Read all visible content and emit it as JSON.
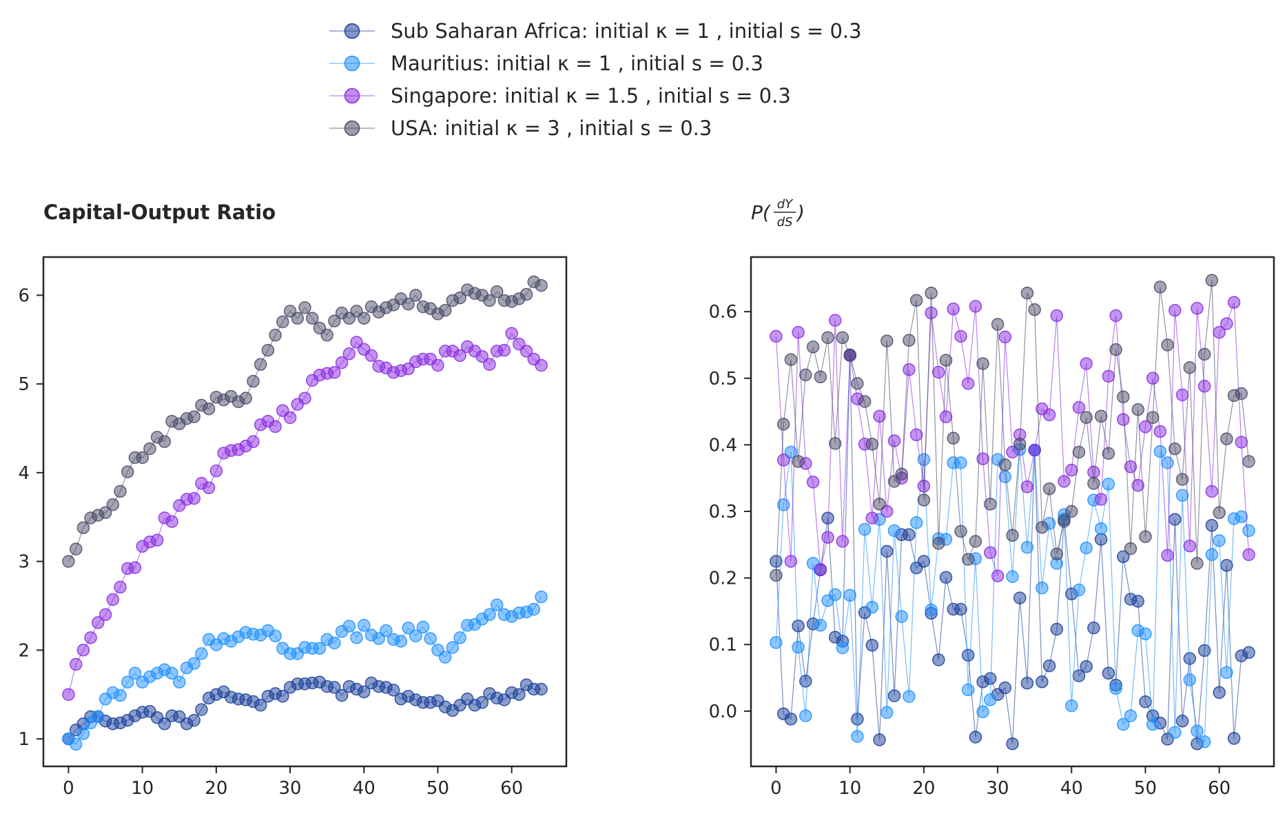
{
  "legend": {
    "entries": [
      {
        "label": "Sub Saharan Africa: initial κ = 1 , initial s = 0.3",
        "color": "#1a3f99"
      },
      {
        "label": "Mauritius: initial κ = 1 , initial s = 0.3",
        "color": "#1e90ff"
      },
      {
        "label": "Singapore: initial κ = 1.5 , initial s = 0.3",
        "color": "#8a2be2"
      },
      {
        "label": "USA: initial κ = 3 , initial s = 0.3",
        "color": "#4a4a68"
      }
    ]
  },
  "chart_data": [
    {
      "type": "line",
      "title": "Capital-Output Ratio",
      "xlabel": "",
      "ylabel": "",
      "x_ticks": [
        0,
        10,
        20,
        30,
        40,
        50,
        60
      ],
      "y_ticks": [
        1,
        2,
        3,
        4,
        5,
        6
      ],
      "xlim": [
        -3.4,
        67.4
      ],
      "ylim": [
        0.69,
        6.43
      ],
      "grid": false,
      "series": [
        {
          "name": "Sub Saharan Africa",
          "color": "#1a3f99",
          "values": [
            1.0,
            1.1,
            1.17,
            1.25,
            1.25,
            1.2,
            1.17,
            1.18,
            1.21,
            1.26,
            1.3,
            1.31,
            1.24,
            1.17,
            1.26,
            1.25,
            1.17,
            1.21,
            1.33,
            1.46,
            1.5,
            1.53,
            1.47,
            1.45,
            1.44,
            1.42,
            1.38,
            1.48,
            1.51,
            1.48,
            1.58,
            1.62,
            1.62,
            1.63,
            1.64,
            1.59,
            1.58,
            1.49,
            1.59,
            1.56,
            1.53,
            1.63,
            1.59,
            1.58,
            1.55,
            1.45,
            1.48,
            1.44,
            1.41,
            1.41,
            1.43,
            1.36,
            1.32,
            1.38,
            1.45,
            1.38,
            1.41,
            1.51,
            1.46,
            1.44,
            1.52,
            1.5,
            1.61,
            1.56,
            1.56
          ]
        },
        {
          "name": "Mauritius",
          "color": "#1e90ff",
          "values": [
            1.0,
            0.94,
            1.06,
            1.18,
            1.25,
            1.45,
            1.52,
            1.49,
            1.64,
            1.74,
            1.64,
            1.7,
            1.74,
            1.78,
            1.74,
            1.64,
            1.8,
            1.85,
            1.96,
            2.12,
            2.06,
            2.13,
            2.1,
            2.15,
            2.2,
            2.18,
            2.17,
            2.22,
            2.16,
            2.02,
            1.96,
            1.96,
            2.03,
            2.02,
            2.02,
            2.12,
            2.08,
            2.21,
            2.27,
            2.14,
            2.28,
            2.17,
            2.13,
            2.22,
            2.12,
            2.1,
            2.25,
            2.16,
            2.26,
            2.13,
            2.0,
            1.92,
            2.03,
            2.14,
            2.28,
            2.29,
            2.35,
            2.4,
            2.51,
            2.4,
            2.38,
            2.42,
            2.43,
            2.46,
            2.6
          ]
        },
        {
          "name": "Singapore",
          "color": "#8a2be2",
          "values": [
            1.5,
            1.84,
            2.0,
            2.14,
            2.31,
            2.4,
            2.57,
            2.71,
            2.92,
            2.93,
            3.17,
            3.22,
            3.24,
            3.49,
            3.45,
            3.63,
            3.7,
            3.71,
            3.88,
            3.83,
            4.02,
            4.22,
            4.25,
            4.26,
            4.3,
            4.35,
            4.54,
            4.58,
            4.52,
            4.7,
            4.62,
            4.77,
            4.84,
            5.04,
            5.1,
            5.12,
            5.13,
            5.24,
            5.34,
            5.47,
            5.39,
            5.32,
            5.2,
            5.18,
            5.13,
            5.15,
            5.17,
            5.25,
            5.28,
            5.28,
            5.21,
            5.37,
            5.37,
            5.32,
            5.42,
            5.37,
            5.31,
            5.22,
            5.37,
            5.38,
            5.57,
            5.45,
            5.37,
            5.28,
            5.21
          ]
        },
        {
          "name": "USA",
          "color": "#4a4a68",
          "values": [
            3.0,
            3.14,
            3.38,
            3.49,
            3.52,
            3.55,
            3.64,
            3.79,
            4.01,
            4.17,
            4.17,
            4.27,
            4.4,
            4.35,
            4.58,
            4.55,
            4.61,
            4.63,
            4.76,
            4.72,
            4.85,
            4.82,
            4.86,
            4.8,
            4.84,
            5.03,
            5.22,
            5.38,
            5.55,
            5.7,
            5.82,
            5.74,
            5.86,
            5.74,
            5.63,
            5.55,
            5.71,
            5.8,
            5.74,
            5.82,
            5.74,
            5.87,
            5.81,
            5.86,
            5.89,
            5.96,
            5.9,
            6.0,
            5.87,
            5.85,
            5.79,
            5.83,
            5.94,
            5.97,
            6.06,
            6.02,
            6.0,
            5.94,
            6.04,
            5.94,
            5.93,
            5.96,
            6.01,
            6.15,
            6.11
          ]
        }
      ]
    },
    {
      "type": "line",
      "title": "P(dY/dS)",
      "title_parts": {
        "prefix": "P(",
        "num": "dY",
        "den": "dS",
        "suffix": ")"
      },
      "xlabel": "",
      "ylabel": "",
      "x_ticks": [
        0,
        10,
        20,
        30,
        40,
        50,
        60
      ],
      "y_ticks": [
        0.0,
        0.1,
        0.2,
        0.3,
        0.4,
        0.5,
        0.6
      ],
      "y_tick_labels": [
        "0.0",
        "0.1",
        "0.2",
        "0.3",
        "0.4",
        "0.5",
        "0.6"
      ],
      "xlim": [
        -3.4,
        67.4
      ],
      "ylim": [
        -0.083,
        0.682
      ],
      "grid": false,
      "series": [
        {
          "name": "Sub Saharan Africa",
          "color": "#1a3f99",
          "values": [
            0.225,
            -0.004,
            -0.012,
            0.128,
            0.045,
            0.131,
            0.212,
            0.29,
            0.111,
            0.105,
            0.535,
            -0.012,
            0.148,
            0.099,
            -0.043,
            0.24,
            0.023,
            0.265,
            0.265,
            0.215,
            0.225,
            0.147,
            0.077,
            0.201,
            0.153,
            0.153,
            0.084,
            -0.039,
            0.044,
            0.049,
            0.025,
            0.035,
            -0.049,
            0.17,
            0.042,
            0.392,
            0.044,
            0.068,
            0.123,
            0.288,
            0.176,
            0.053,
            0.067,
            0.125,
            0.258,
            0.057,
            0.039,
            0.232,
            0.168,
            0.165,
            0.014,
            -0.007,
            -0.018,
            -0.042,
            0.288,
            -0.015,
            0.079,
            -0.049,
            0.091,
            0.279,
            0.028,
            0.219,
            -0.041,
            0.083,
            0.088
          ]
        },
        {
          "name": "Mauritius",
          "color": "#1e90ff",
          "values": [
            0.103,
            0.31,
            0.389,
            0.096,
            -0.007,
            0.222,
            0.129,
            0.166,
            0.175,
            0.095,
            0.174,
            -0.038,
            0.273,
            0.156,
            0.288,
            -0.002,
            0.271,
            0.142,
            0.022,
            0.283,
            0.378,
            0.152,
            0.259,
            0.258,
            0.373,
            0.373,
            0.032,
            0.229,
            -0.001,
            0.017,
            0.378,
            0.352,
            0.202,
            0.393,
            0.246,
            0.392,
            0.185,
            0.282,
            0.222,
            0.295,
            0.008,
            0.182,
            0.245,
            0.317,
            0.274,
            0.341,
            0.034,
            -0.02,
            -0.007,
            0.121,
            0.116,
            -0.02,
            0.39,
            0.373,
            -0.032,
            0.324,
            0.047,
            -0.03,
            -0.046,
            0.235,
            0.256,
            0.058,
            0.289,
            0.292,
            0.271
          ]
        },
        {
          "name": "Singapore",
          "color": "#8a2be2",
          "values": [
            0.563,
            0.377,
            0.225,
            0.569,
            0.372,
            0.344,
            0.213,
            0.261,
            0.587,
            0.255,
            0.534,
            0.469,
            0.401,
            0.29,
            0.443,
            0.3,
            0.406,
            0.35,
            0.513,
            0.415,
            0.338,
            0.598,
            0.509,
            0.442,
            0.604,
            0.563,
            0.492,
            0.608,
            0.379,
            0.238,
            0.203,
            0.562,
            0.389,
            0.415,
            0.337,
            0.392,
            0.454,
            0.445,
            0.594,
            0.345,
            0.362,
            0.456,
            0.522,
            0.359,
            0.318,
            0.503,
            0.594,
            0.438,
            0.367,
            0.339,
            0.427,
            0.5,
            0.42,
            0.234,
            0.602,
            0.475,
            0.248,
            0.605,
            0.488,
            0.33,
            0.569,
            0.582,
            0.614,
            0.404,
            0.235
          ]
        },
        {
          "name": "USA",
          "color": "#4a4a68",
          "values": [
            0.204,
            0.431,
            0.528,
            0.375,
            0.505,
            0.547,
            0.502,
            0.561,
            0.402,
            0.561,
            0.535,
            0.492,
            0.465,
            0.401,
            0.311,
            0.556,
            0.345,
            0.356,
            0.557,
            0.617,
            0.317,
            0.628,
            0.252,
            0.527,
            0.41,
            0.27,
            0.228,
            0.255,
            0.522,
            0.311,
            0.581,
            0.37,
            0.264,
            0.401,
            0.628,
            0.603,
            0.276,
            0.334,
            0.236,
            0.285,
            0.3,
            0.389,
            0.441,
            0.342,
            0.443,
            0.387,
            0.543,
            0.472,
            0.244,
            0.453,
            0.262,
            0.441,
            0.637,
            0.55,
            0.394,
            0.348,
            0.516,
            0.222,
            0.536,
            0.647,
            0.298,
            0.409,
            0.474,
            0.477,
            0.375
          ]
        }
      ]
    }
  ]
}
